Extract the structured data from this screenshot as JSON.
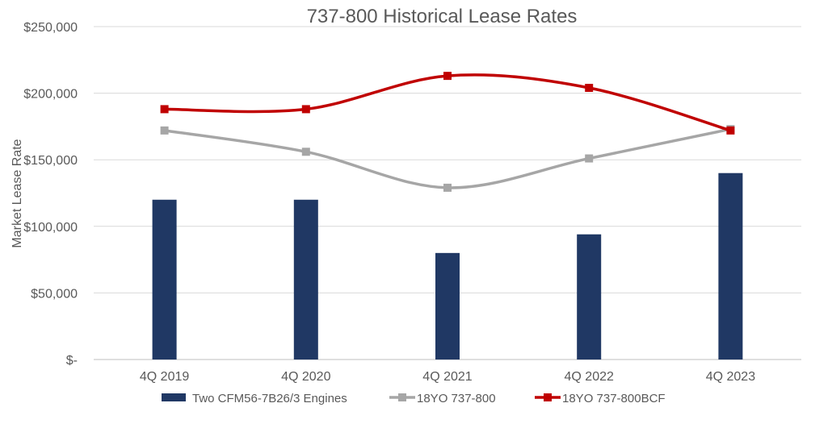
{
  "chart_data": {
    "type": "bar+line",
    "title": "737-800 Historical Lease Rates",
    "xlabel": "",
    "ylabel": "Market Lease Rate",
    "ylim": [
      0,
      250000
    ],
    "yticks": [
      0,
      50000,
      100000,
      150000,
      200000,
      250000
    ],
    "ytick_labels": [
      "$-",
      "$50,000",
      "$100,000",
      "$150,000",
      "$200,000",
      "$250,000"
    ],
    "grid": true,
    "legend_position": "bottom",
    "categories": [
      "4Q 2019",
      "4Q 2020",
      "4Q 2021",
      "4Q 2022",
      "4Q 2023"
    ],
    "series": [
      {
        "name": "Two CFM56-7B26/3 Engines",
        "type": "bar",
        "color": "#203864",
        "values": [
          120000,
          120000,
          80000,
          94000,
          140000
        ]
      },
      {
        "name": "18YO 737-800",
        "type": "line",
        "smooth": true,
        "marker": "square",
        "color": "#A6A6A6",
        "values": [
          172000,
          156000,
          129000,
          151000,
          173000
        ]
      },
      {
        "name": "18YO 737-800BCF",
        "type": "line",
        "smooth": true,
        "marker": "square",
        "color": "#C00000",
        "values": [
          188000,
          188000,
          213000,
          204000,
          172000
        ]
      }
    ]
  }
}
